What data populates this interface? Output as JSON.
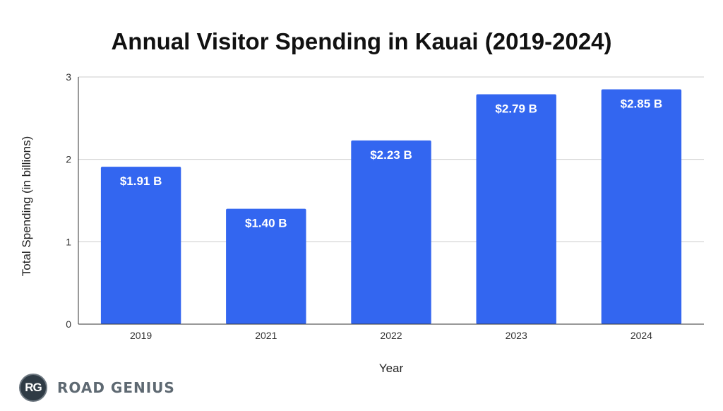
{
  "chart_data": {
    "type": "bar",
    "title": "Annual Visitor Spending in Kauai (2019-2024)",
    "xlabel": "Year",
    "ylabel": "Total Spending (in billions)",
    "categories": [
      "2019",
      "2021",
      "2022",
      "2023",
      "2024"
    ],
    "values": [
      1.91,
      1.4,
      2.23,
      2.79,
      2.85
    ],
    "data_labels": [
      "$1.91 B",
      "$1.40 B",
      "$2.23 B",
      "$2.79 B",
      "$2.85 B"
    ],
    "ylim": [
      0,
      3
    ],
    "yticks": [
      "0",
      "1",
      "2",
      "3"
    ],
    "grid": true,
    "bar_color": "#3366f0"
  },
  "logo": {
    "badge": "RG",
    "name": "ROAD GENIUS"
  }
}
